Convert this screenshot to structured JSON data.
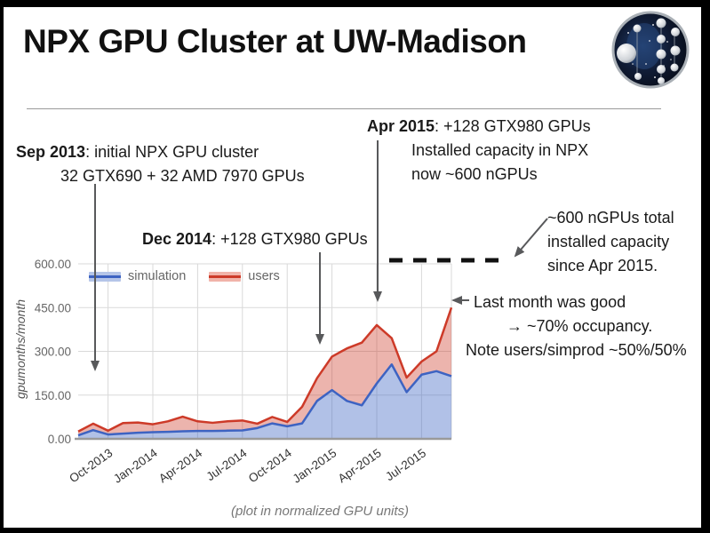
{
  "slide": {
    "title": "NPX GPU Cluster at UW-Madison",
    "caption": "(plot in normalized GPU units)"
  },
  "annotations": {
    "sep2013": {
      "date": "Sep 2013",
      "rest": ": initial NPX GPU cluster",
      "line2": "32 GTX690 + 32 AMD 7970 GPUs"
    },
    "dec2014": {
      "date": "Dec 2014",
      "rest": ": +128 GTX980 GPUs"
    },
    "apr2015": {
      "date": "Apr 2015",
      "rest": ": +128 GTX980 GPUs",
      "line2": "Installed capacity in NPX",
      "line3": "now ~600 nGPUs"
    },
    "cap600": {
      "line1": "~600 nGPUs total",
      "line2": "installed capacity",
      "line3": "since Apr 2015."
    },
    "lastmonth": {
      "line1": "Last month was good",
      "line2": "→ ~70% occupancy.",
      "line3": "Note users/simprod ~50%/50%"
    }
  },
  "chart_data": {
    "type": "area",
    "stacked": true,
    "ylabel": "gpumonths/month",
    "xlabel": "",
    "ylim": [
      0,
      600
    ],
    "grid": true,
    "legend_position": "top-left-inside",
    "months": [
      "Aug-2013",
      "Sep-2013",
      "Oct-2013",
      "Nov-2013",
      "Dec-2013",
      "Jan-2014",
      "Feb-2014",
      "Mar-2014",
      "Apr-2014",
      "May-2014",
      "Jun-2014",
      "Jul-2014",
      "Aug-2014",
      "Sep-2014",
      "Oct-2014",
      "Nov-2014",
      "Dec-2014",
      "Jan-2015",
      "Feb-2015",
      "Mar-2015",
      "Apr-2015",
      "May-2015",
      "Jun-2015",
      "Jul-2015",
      "Aug-2015",
      "Sep-2015"
    ],
    "x_tick_indices": [
      2,
      5,
      8,
      11,
      14,
      17,
      20,
      23
    ],
    "x_tick_labels": [
      "Oct-2013",
      "Jan-2014",
      "Apr-2014",
      "Jul-2014",
      "Oct-2014",
      "Jan-2015",
      "Apr-2015",
      "Jul-2015"
    ],
    "y_tick_values": [
      0,
      150,
      300,
      450,
      600
    ],
    "y_tick_labels": [
      "0.00",
      "150.00",
      "300.00",
      "450.00",
      "600.00"
    ],
    "series": [
      {
        "name": "simulation",
        "color": "#3d63c2",
        "fill": "#b5c5e8",
        "values": [
          12,
          30,
          15,
          18,
          21,
          23,
          24,
          26,
          27,
          27,
          28,
          29,
          37,
          53,
          43,
          53,
          130,
          167,
          130,
          115,
          190,
          255,
          160,
          220,
          232,
          215
        ]
      },
      {
        "name": "users",
        "color": "#cd3a28",
        "fill": "#f1b3a9",
        "values": [
          13,
          22,
          13,
          36,
          35,
          27,
          36,
          50,
          33,
          28,
          32,
          34,
          15,
          22,
          15,
          57,
          78,
          115,
          180,
          215,
          200,
          90,
          50,
          45,
          68,
          235
        ]
      }
    ],
    "annotation_capacity_level": 600,
    "total_peak_values": {
      "apr2015_total": 390,
      "sep2015_total": 450
    }
  }
}
